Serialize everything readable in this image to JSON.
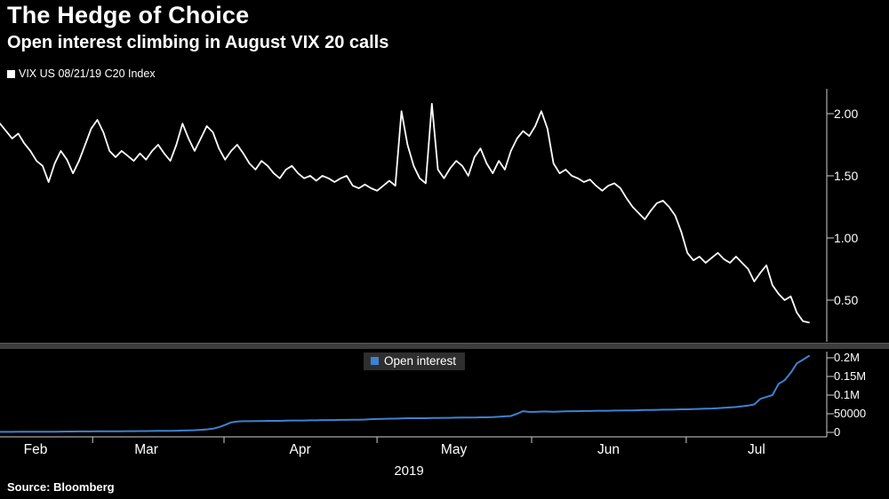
{
  "source": "Source:  Bloomberg",
  "colors": {
    "background": "#000000",
    "price_line": "#ffffff",
    "open_interest_line": "#3d82d1",
    "divider": "#3d3d3d",
    "axis": "#d0d0d0",
    "legend_box_bg": "#2e2e2e"
  },
  "chart_data": {
    "type": "line",
    "title": "The Hedge of Choice",
    "subtitle": "Open interest climbing in August VIX 20 calls",
    "grid": "off",
    "legend_position": "top-left",
    "x_axis": {
      "months": [
        "Feb",
        "Mar",
        "Apr",
        "May",
        "Jun",
        "Jul"
      ],
      "year": "2019"
    },
    "panels": [
      {
        "name": "VIX US 08/21/19 C20 Index",
        "color": "#ffffff",
        "ylim": [
          0.25,
          2.15
        ],
        "y_ticks": [
          {
            "label": "2.00",
            "value": 2.0
          },
          {
            "label": "1.50",
            "value": 1.5
          },
          {
            "label": "1.00",
            "value": 1.0
          },
          {
            "label": "0.50",
            "value": 0.5
          }
        ],
        "values": [
          1.92,
          1.86,
          1.8,
          1.84,
          1.76,
          1.7,
          1.62,
          1.58,
          1.45,
          1.6,
          1.7,
          1.63,
          1.52,
          1.62,
          1.75,
          1.88,
          1.95,
          1.85,
          1.7,
          1.65,
          1.7,
          1.66,
          1.62,
          1.68,
          1.63,
          1.7,
          1.75,
          1.68,
          1.62,
          1.75,
          1.92,
          1.8,
          1.7,
          1.8,
          1.9,
          1.85,
          1.72,
          1.63,
          1.7,
          1.75,
          1.68,
          1.6,
          1.55,
          1.62,
          1.58,
          1.52,
          1.48,
          1.55,
          1.58,
          1.52,
          1.48,
          1.5,
          1.46,
          1.5,
          1.48,
          1.45,
          1.48,
          1.5,
          1.42,
          1.4,
          1.43,
          1.4,
          1.38,
          1.42,
          1.46,
          1.42,
          2.02,
          1.75,
          1.58,
          1.48,
          1.44,
          2.08,
          1.55,
          1.48,
          1.56,
          1.62,
          1.58,
          1.5,
          1.65,
          1.72,
          1.6,
          1.52,
          1.62,
          1.55,
          1.7,
          1.8,
          1.86,
          1.82,
          1.9,
          2.02,
          1.88,
          1.6,
          1.52,
          1.55,
          1.5,
          1.48,
          1.45,
          1.47,
          1.42,
          1.38,
          1.42,
          1.44,
          1.4,
          1.32,
          1.25,
          1.2,
          1.15,
          1.22,
          1.28,
          1.3,
          1.25,
          1.18,
          1.05,
          0.88,
          0.82,
          0.85,
          0.8,
          0.84,
          0.88,
          0.83,
          0.8,
          0.85,
          0.8,
          0.75,
          0.65,
          0.72,
          0.78,
          0.62,
          0.55,
          0.5,
          0.53,
          0.4,
          0.33,
          0.32
        ]
      },
      {
        "name": "Open interest",
        "color": "#3d82d1",
        "ylim": [
          0,
          220000
        ],
        "y_ticks": [
          {
            "label": "0.2M",
            "value": 200000
          },
          {
            "label": "0.15M",
            "value": 150000
          },
          {
            "label": "0.1M",
            "value": 100000
          },
          {
            "label": "50000",
            "value": 50000
          },
          {
            "label": "0",
            "value": 0
          }
        ],
        "values": [
          1500,
          1500,
          1500,
          1600,
          1600,
          1700,
          1800,
          1800,
          1900,
          2000,
          2200,
          2300,
          2400,
          2500,
          2600,
          2700,
          2800,
          2900,
          3000,
          3100,
          3200,
          3300,
          3400,
          3500,
          3600,
          3800,
          4000,
          4200,
          4400,
          4600,
          5000,
          5500,
          6000,
          7000,
          8000,
          10000,
          14000,
          20000,
          27000,
          29000,
          30000,
          30000,
          30500,
          30500,
          31000,
          31000,
          31000,
          31500,
          32000,
          32000,
          32000,
          32500,
          32500,
          33000,
          33000,
          33000,
          33500,
          33500,
          34000,
          34000,
          34500,
          35500,
          36000,
          36500,
          37000,
          37000,
          37500,
          38000,
          38000,
          38000,
          38000,
          38500,
          38500,
          39000,
          39000,
          39500,
          40000,
          40000,
          40000,
          40500,
          40500,
          41000,
          42000,
          43000,
          44000,
          50000,
          57000,
          55000,
          55000,
          56000,
          56000,
          55500,
          56000,
          56500,
          57000,
          57000,
          57500,
          57500,
          58000,
          58000,
          58000,
          58500,
          58500,
          59000,
          59000,
          59500,
          60000,
          60000,
          60500,
          61000,
          61000,
          61500,
          62000,
          62000,
          62500,
          63000,
          63500,
          64000,
          65000,
          66000,
          67000,
          68000,
          70000,
          72000,
          75000,
          90000,
          95000,
          100000,
          130000,
          140000,
          160000,
          185000,
          195000,
          205000
        ]
      }
    ]
  }
}
